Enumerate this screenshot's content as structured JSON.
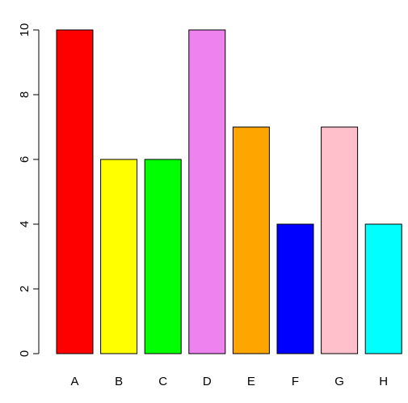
{
  "chart_data": {
    "type": "bar",
    "categories": [
      "A",
      "B",
      "C",
      "D",
      "E",
      "F",
      "G",
      "H"
    ],
    "values": [
      10,
      6,
      6,
      10,
      7,
      4,
      7,
      4
    ],
    "colors": [
      "#ff0000",
      "#ffff00",
      "#00ff00",
      "#ee82ee",
      "#ffa500",
      "#0000ff",
      "#ffc0cb",
      "#00ffff"
    ],
    "bar_outline_color": "#000000",
    "yticks": [
      0,
      2,
      4,
      6,
      8,
      10
    ],
    "ylim": [
      0,
      10
    ],
    "grid": false,
    "title": "",
    "xlabel": "",
    "ylabel": ""
  }
}
